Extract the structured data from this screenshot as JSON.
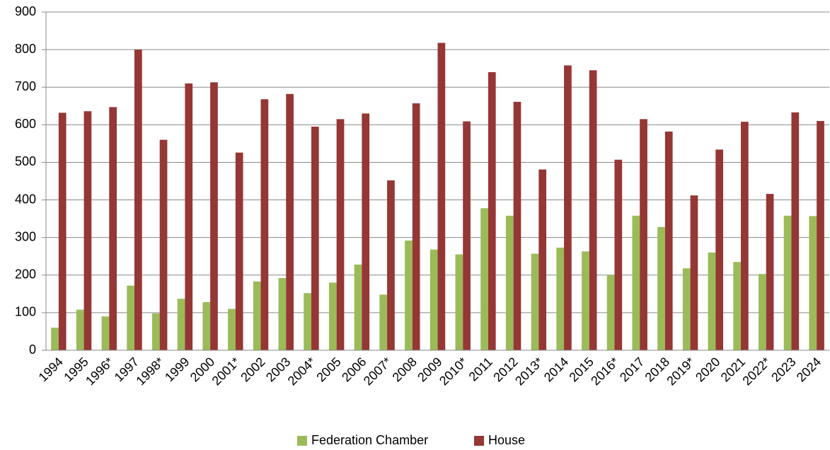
{
  "chart_data": {
    "type": "bar",
    "categories": [
      "1994",
      "1995",
      "1996*",
      "1997",
      "1998*",
      "1999",
      "2000",
      "2001*",
      "2002",
      "2003",
      "2004*",
      "2005",
      "2006",
      "2007*",
      "2008",
      "2009",
      "2010*",
      "2011",
      "2012",
      "2013*",
      "2014",
      "2015",
      "2016*",
      "2017",
      "2018",
      "2019*",
      "2020",
      "2021",
      "2022*",
      "2023",
      "2024"
    ],
    "series": [
      {
        "name": "Federation Chamber",
        "color": "#9bbb59",
        "values": [
          60,
          108,
          90,
          172,
          98,
          137,
          128,
          110,
          183,
          192,
          152,
          180,
          228,
          148,
          292,
          268,
          255,
          378,
          358,
          257,
          273,
          263,
          200,
          358,
          328,
          218,
          260,
          235,
          203,
          358,
          357
        ]
      },
      {
        "name": "House",
        "color": "#953735",
        "values": [
          632,
          636,
          647,
          800,
          560,
          710,
          713,
          526,
          668,
          682,
          595,
          615,
          630,
          452,
          657,
          818,
          609,
          740,
          661,
          481,
          758,
          745,
          507,
          615,
          582,
          412,
          534,
          608,
          416,
          633,
          610
        ]
      }
    ],
    "ylim": [
      0,
      900
    ],
    "yticks": [
      0,
      100,
      200,
      300,
      400,
      500,
      600,
      700,
      800,
      900
    ],
    "grid": true,
    "legend": "bottom"
  }
}
